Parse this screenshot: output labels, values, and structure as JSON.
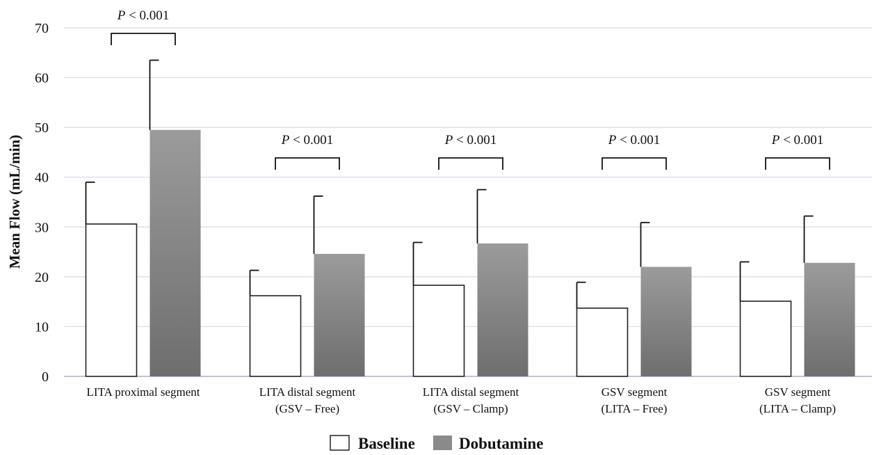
{
  "chart_data": {
    "type": "bar",
    "ylabel": "Mean Flow (mL/min)",
    "ylim": [
      0,
      70
    ],
    "yticks": [
      0,
      10,
      20,
      30,
      40,
      50,
      60,
      70
    ],
    "grid": true,
    "legend_position": "bottom-center",
    "categories": [
      [
        "LITA proximal segment"
      ],
      [
        "LITA distal segment",
        "(GSV – Free)"
      ],
      [
        "LITA distal segment",
        "(GSV – Clamp)"
      ],
      [
        "GSV segment",
        "(LITA – Free)"
      ],
      [
        "GSV segment",
        "(LITA – Clamp)"
      ]
    ],
    "series": [
      {
        "name": "Baseline",
        "color": "#ffffff",
        "values": [
          30.6,
          16.2,
          18.3,
          13.7,
          15.1
        ],
        "error": [
          8.4,
          5.1,
          8.6,
          5.2,
          7.9
        ]
      },
      {
        "name": "Dobutamine",
        "color": "#8a8a8a",
        "values": [
          49.5,
          24.6,
          26.7,
          22.0,
          22.8
        ],
        "error": [
          14.0,
          11.6,
          10.8,
          8.9,
          9.4
        ]
      }
    ],
    "annotations": [
      {
        "p": "P",
        "rest": " < 0.001",
        "group": 0
      },
      {
        "p": "P",
        "rest": " < 0.001",
        "group": 1
      },
      {
        "p": "P",
        "rest": " < 0.001",
        "group": 2
      },
      {
        "p": "P",
        "rest": " < 0.001",
        "group": 3
      },
      {
        "p": "P",
        "rest": " < 0.001",
        "group": 4
      }
    ]
  }
}
